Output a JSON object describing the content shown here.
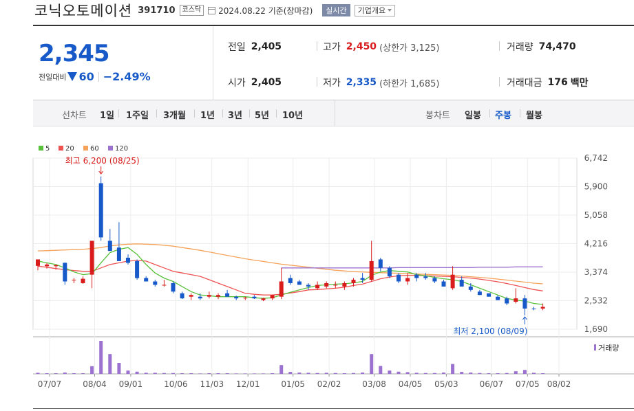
{
  "header": {
    "stock_name": "코닉오토메이션",
    "stock_code": "391710",
    "market": "코스닥",
    "date": "2024.08.22",
    "date_suffix": "기준(장마감)",
    "realtime_label": "실시간",
    "company_label": "기업개요"
  },
  "quote": {
    "price": "2,345",
    "change_label": "전일대비",
    "change": "60",
    "change_pct": "−2.49%",
    "prev_close_label": "전일",
    "prev_close": "2,405",
    "high_label": "고가",
    "high": "2,450",
    "upper_limit": "(상한가 3,125)",
    "volume_label": "거래량",
    "volume": "74,470",
    "open_label": "시가",
    "open": "2,405",
    "low_label": "저가",
    "low": "2,335",
    "lower_limit": "(하한가 1,685)",
    "amount_label": "거래대금",
    "amount": "176",
    "amount_unit": "백만"
  },
  "period_bar": {
    "line_label": "선차트",
    "line_items": [
      "1일",
      "1주일",
      "3개월",
      "1년",
      "3년",
      "5년",
      "10년"
    ],
    "candle_label": "봉차트",
    "candle_items": [
      "일봉",
      "주봉",
      "월봉"
    ],
    "active": "주봉"
  },
  "colors": {
    "up": "#d91b1b",
    "down": "#1759c8",
    "ma5": "#58c03a",
    "ma20": "#ef5252",
    "ma60": "#f5a25a",
    "ma120": "#9b72cf",
    "volume": "#9b72cf"
  },
  "chart_data": {
    "type": "candlestick",
    "interval": "weekly",
    "legend": [
      "5",
      "20",
      "60",
      "120"
    ],
    "y_ticks": [
      "6,742",
      "5,900",
      "5,058",
      "4,216",
      "3,374",
      "2,532",
      "1,690"
    ],
    "ylim": [
      1690,
      6742
    ],
    "x_ticks": [
      "07/07",
      "08/04",
      "09/01",
      "10/06",
      "11/03",
      "12/01",
      "01/05",
      "02/02",
      "03/08",
      "04/05",
      "05/03",
      "06/07",
      "07/05",
      "08/02"
    ],
    "max_label": "최고 6,200 (08/25)",
    "min_label": "최저 2,100 (08/09)",
    "volume_label": "거래량",
    "candles": [
      {
        "o": 3560,
        "h": 3700,
        "l": 3430,
        "c": 3750
      },
      {
        "o": 3550,
        "h": 3640,
        "l": 3480,
        "c": 3600
      },
      {
        "o": 3550,
        "h": 3600,
        "l": 3450,
        "c": 3580
      },
      {
        "o": 3650,
        "h": 3660,
        "l": 3000,
        "c": 3100
      },
      {
        "o": 3150,
        "h": 3200,
        "l": 3050,
        "c": 3150
      },
      {
        "o": 3050,
        "h": 3250,
        "l": 3030,
        "c": 3180
      },
      {
        "o": 3300,
        "h": 4300,
        "l": 2900,
        "c": 4300
      },
      {
        "o": 6000,
        "h": 6200,
        "l": 4300,
        "c": 4400
      },
      {
        "o": 4300,
        "h": 4650,
        "l": 4000,
        "c": 4000
      },
      {
        "o": 4100,
        "h": 4850,
        "l": 3750,
        "c": 3700
      },
      {
        "o": 3800,
        "h": 3900,
        "l": 3600,
        "c": 3650
      },
      {
        "o": 3700,
        "h": 3750,
        "l": 3150,
        "c": 3200
      },
      {
        "o": 3200,
        "h": 3250,
        "l": 3100,
        "c": 3100
      },
      {
        "o": 3100,
        "h": 3150,
        "l": 2950,
        "c": 3000
      },
      {
        "o": 3000,
        "h": 3150,
        "l": 2950,
        "c": 3000
      },
      {
        "o": 3050,
        "h": 3100,
        "l": 2750,
        "c": 2800
      },
      {
        "o": 2750,
        "h": 2800,
        "l": 2580,
        "c": 2600
      },
      {
        "o": 2650,
        "h": 2750,
        "l": 2550,
        "c": 2700
      },
      {
        "o": 2650,
        "h": 2750,
        "l": 2550,
        "c": 2600
      },
      {
        "o": 2650,
        "h": 2800,
        "l": 2600,
        "c": 2700
      },
      {
        "o": 2650,
        "h": 2750,
        "l": 2580,
        "c": 2700
      },
      {
        "o": 2750,
        "h": 2850,
        "l": 2650,
        "c": 2650
      },
      {
        "o": 2650,
        "h": 2680,
        "l": 2550,
        "c": 2600
      },
      {
        "o": 2600,
        "h": 2650,
        "l": 2550,
        "c": 2620
      },
      {
        "o": 2650,
        "h": 2700,
        "l": 2580,
        "c": 2600
      },
      {
        "o": 2550,
        "h": 2620,
        "l": 2520,
        "c": 2600
      },
      {
        "o": 2600,
        "h": 2700,
        "l": 2550,
        "c": 2700
      },
      {
        "o": 2650,
        "h": 3500,
        "l": 2580,
        "c": 3100
      },
      {
        "o": 3200,
        "h": 3300,
        "l": 3000,
        "c": 3050
      },
      {
        "o": 3100,
        "h": 3150,
        "l": 3000,
        "c": 3000
      },
      {
        "o": 3000,
        "h": 3050,
        "l": 2850,
        "c": 2950
      },
      {
        "o": 2900,
        "h": 3100,
        "l": 2850,
        "c": 3000
      },
      {
        "o": 2950,
        "h": 3100,
        "l": 2900,
        "c": 3050
      },
      {
        "o": 3000,
        "h": 3100,
        "l": 2900,
        "c": 3000
      },
      {
        "o": 2950,
        "h": 3100,
        "l": 2850,
        "c": 3050
      },
      {
        "o": 3050,
        "h": 3200,
        "l": 2950,
        "c": 3150
      },
      {
        "o": 3200,
        "h": 3350,
        "l": 3050,
        "c": 3150
      },
      {
        "o": 3150,
        "h": 4300,
        "l": 3100,
        "c": 3700
      },
      {
        "o": 3750,
        "h": 3800,
        "l": 3400,
        "c": 3500
      },
      {
        "o": 3500,
        "h": 3550,
        "l": 3200,
        "c": 3250
      },
      {
        "o": 3300,
        "h": 3350,
        "l": 3050,
        "c": 3100
      },
      {
        "o": 3100,
        "h": 3350,
        "l": 3000,
        "c": 3200
      },
      {
        "o": 3300,
        "h": 3350,
        "l": 3100,
        "c": 3200
      },
      {
        "o": 3250,
        "h": 3350,
        "l": 3150,
        "c": 3200
      },
      {
        "o": 3200,
        "h": 3250,
        "l": 3050,
        "c": 3100
      },
      {
        "o": 3100,
        "h": 3150,
        "l": 2950,
        "c": 2950
      },
      {
        "o": 2900,
        "h": 3550,
        "l": 2850,
        "c": 3300
      },
      {
        "o": 3150,
        "h": 3250,
        "l": 2950,
        "c": 2950
      },
      {
        "o": 2950,
        "h": 3050,
        "l": 2800,
        "c": 2850
      },
      {
        "o": 2800,
        "h": 2850,
        "l": 2700,
        "c": 2700
      },
      {
        "o": 2750,
        "h": 2750,
        "l": 2650,
        "c": 2650
      },
      {
        "o": 2650,
        "h": 2700,
        "l": 2550,
        "c": 2550
      },
      {
        "o": 2600,
        "h": 2650,
        "l": 2400,
        "c": 2450
      },
      {
        "o": 2500,
        "h": 2900,
        "l": 2450,
        "c": 2600
      },
      {
        "o": 2600,
        "h": 2700,
        "l": 2100,
        "c": 2300
      },
      {
        "o": 2300,
        "h": 2350,
        "l": 2250,
        "c": 2280
      },
      {
        "o": 2300,
        "h": 2450,
        "l": 2250,
        "c": 2350
      }
    ],
    "ma5": [
      3700,
      3650,
      3600,
      3500,
      3380,
      3300,
      3330,
      3650,
      3950,
      4050,
      4100,
      3900,
      3600,
      3350,
      3200,
      3100,
      2950,
      2800,
      2700,
      2680,
      2650,
      2650,
      2650,
      2650,
      2620,
      2600,
      2620,
      2700,
      2780,
      2850,
      2920,
      2980,
      3000,
      3020,
      3030,
      3060,
      3100,
      3280,
      3380,
      3420,
      3400,
      3380,
      3300,
      3270,
      3220,
      3180,
      3150,
      3100,
      3000,
      2900,
      2800,
      2700,
      2600,
      2550,
      2520,
      2450,
      2420
    ],
    "ma20": [
      3550,
      3520,
      3480,
      3450,
      3420,
      3400,
      3400,
      3500,
      3600,
      3650,
      3700,
      3720,
      3700,
      3600,
      3500,
      3400,
      3350,
      3300,
      3250,
      3150,
      3050,
      2950,
      2850,
      2750,
      2720,
      2700,
      2700,
      2720,
      2760,
      2800,
      2850,
      2860,
      2880,
      2900,
      2930,
      2980,
      3020,
      3100,
      3180,
      3230,
      3270,
      3280,
      3280,
      3270,
      3260,
      3250,
      3240,
      3220,
      3200,
      3170,
      3130,
      3090,
      3040,
      2980,
      2920,
      2860,
      2820
    ],
    "ma60": [
      4000,
      4010,
      4020,
      4030,
      4040,
      4050,
      4070,
      4100,
      4150,
      4180,
      4200,
      4210,
      4200,
      4190,
      4170,
      4140,
      4100,
      4060,
      4020,
      3970,
      3920,
      3870,
      3820,
      3770,
      3730,
      3690,
      3650,
      3610,
      3580,
      3550,
      3520,
      3490,
      3460,
      3430,
      3410,
      3390,
      3380,
      3370,
      3360,
      3350,
      3340,
      3330,
      3320,
      3310,
      3300,
      3290,
      3280,
      3260,
      3240,
      3220,
      3200,
      3170,
      3140,
      3110,
      3080,
      3050,
      3030
    ],
    "ma120": [
      null,
      null,
      null,
      null,
      null,
      null,
      null,
      null,
      null,
      null,
      null,
      null,
      null,
      null,
      null,
      null,
      null,
      null,
      null,
      null,
      null,
      null,
      null,
      null,
      null,
      null,
      null,
      3500,
      3500,
      3500,
      3500,
      3500,
      3500,
      3500,
      3500,
      3500,
      3500,
      3500,
      3500,
      3500,
      3510,
      3510,
      3510,
      3510,
      3510,
      3510,
      3510,
      3510,
      3510,
      3520,
      3520,
      3520,
      3520,
      3530,
      3530,
      3530,
      3530
    ],
    "volume": [
      0.5,
      0.3,
      0.3,
      0.6,
      0.3,
      0.3,
      3.5,
      15,
      9,
      5,
      1.5,
      1,
      0.5,
      0.5,
      0.4,
      0.4,
      0.3,
      0.3,
      0.2,
      0.3,
      0.3,
      0.3,
      0.2,
      0.2,
      0.2,
      0.2,
      0.3,
      4,
      0.9,
      0.6,
      0.5,
      0.4,
      0.5,
      0.4,
      0.3,
      0.4,
      0.6,
      9,
      3.6,
      1.5,
      1,
      0.8,
      0.5,
      0.4,
      0.4,
      0.6,
      4.5,
      0.9,
      0.6,
      0.4,
      0.3,
      0.3,
      0.4,
      1.2,
      1.8,
      0.5,
      0.3
    ],
    "volume_max": 15
  }
}
